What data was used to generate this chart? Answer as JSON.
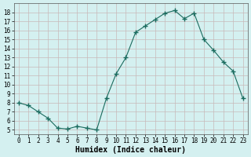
{
  "x": [
    0,
    1,
    2,
    3,
    4,
    5,
    6,
    7,
    8,
    9,
    10,
    11,
    12,
    13,
    14,
    15,
    16,
    17,
    18,
    19,
    20,
    21,
    22,
    23
  ],
  "y": [
    8.0,
    7.7,
    7.0,
    6.3,
    5.2,
    5.1,
    5.4,
    5.2,
    5.0,
    8.5,
    11.2,
    13.0,
    15.8,
    16.5,
    17.2,
    17.9,
    18.2,
    17.3,
    17.9,
    15.0,
    13.8,
    12.5,
    11.5,
    8.5
  ],
  "line_color": "#1a6b5e",
  "marker": "+",
  "marker_size": 4,
  "bg_color": "#d4f0f0",
  "grid_color": "#c8b8b8",
  "xlabel": "Humidex (Indice chaleur)",
  "ylim": [
    4.5,
    19.0
  ],
  "xlim": [
    -0.5,
    23.5
  ],
  "yticks": [
    5,
    6,
    7,
    8,
    9,
    10,
    11,
    12,
    13,
    14,
    15,
    16,
    17,
    18
  ],
  "xticks": [
    0,
    1,
    2,
    3,
    4,
    5,
    6,
    7,
    8,
    9,
    10,
    11,
    12,
    13,
    14,
    15,
    16,
    17,
    18,
    19,
    20,
    21,
    22,
    23
  ],
  "label_fontsize": 7,
  "tick_fontsize": 5.5
}
